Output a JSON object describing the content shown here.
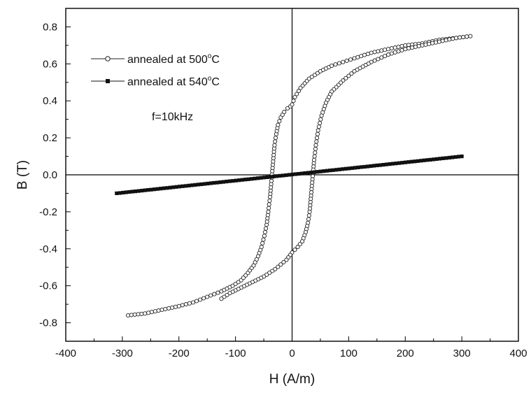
{
  "chart_data": {
    "type": "scatter",
    "title": "",
    "xlabel": "H (A/m)",
    "ylabel": "B (T)",
    "xlim": [
      -400,
      400
    ],
    "ylim": [
      -0.9,
      0.9
    ],
    "x_ticks": [
      -400,
      -300,
      -200,
      -100,
      0,
      100,
      200,
      300,
      400
    ],
    "x_tick_labels": [
      "-400",
      "-300",
      "-200",
      "-100",
      "0",
      "100",
      "200",
      "300",
      "400"
    ],
    "y_ticks": [
      -0.8,
      -0.6,
      -0.4,
      -0.2,
      0.0,
      0.2,
      0.4,
      0.6,
      0.8
    ],
    "y_tick_labels": [
      "-0.8",
      "-0.6",
      "-0.4",
      "-0.2",
      "0.0",
      "0.2",
      "0.4",
      "0.6",
      "0.8"
    ],
    "grid": false,
    "zero_lines": true,
    "legend_position": "top-left",
    "annotation": "f=10kHz",
    "series": [
      {
        "name": "annealed at 500°C",
        "legend_main": "annealed at 500",
        "legend_sup": "o",
        "legend_tail": "C",
        "marker": "open-circle",
        "color": "#222222",
        "x": [
          -290,
          -260,
          -230,
          -200,
          -175,
          -150,
          -125,
          -105,
          -90,
          -78,
          -68,
          -60,
          -54,
          -49,
          -45,
          -42,
          -39,
          -37,
          -35,
          -33,
          -31,
          -28,
          -25,
          -20,
          -14,
          -8,
          -3,
          0,
          5,
          15,
          30,
          50,
          70,
          90,
          110,
          140,
          170,
          200,
          230,
          260,
          290,
          315,
          290,
          260,
          230,
          200,
          170,
          140,
          110,
          90,
          70,
          60,
          52,
          46,
          42,
          39,
          37,
          35,
          33,
          31,
          28,
          24,
          18,
          10,
          0,
          -10,
          -30,
          -50,
          -70,
          -90,
          -110,
          -125
        ],
        "y": [
          -0.76,
          -0.75,
          -0.73,
          -0.71,
          -0.69,
          -0.66,
          -0.63,
          -0.6,
          -0.57,
          -0.53,
          -0.49,
          -0.44,
          -0.39,
          -0.33,
          -0.27,
          -0.2,
          -0.12,
          -0.05,
          0.02,
          0.09,
          0.16,
          0.22,
          0.27,
          0.31,
          0.34,
          0.36,
          0.37,
          0.38,
          0.42,
          0.47,
          0.52,
          0.56,
          0.59,
          0.61,
          0.63,
          0.66,
          0.68,
          0.7,
          0.71,
          0.73,
          0.74,
          0.75,
          0.74,
          0.72,
          0.7,
          0.68,
          0.65,
          0.61,
          0.56,
          0.51,
          0.45,
          0.39,
          0.32,
          0.24,
          0.16,
          0.08,
          0.01,
          -0.06,
          -0.13,
          -0.2,
          -0.26,
          -0.31,
          -0.36,
          -0.39,
          -0.42,
          -0.46,
          -0.51,
          -0.55,
          -0.58,
          -0.61,
          -0.64,
          -0.67
        ]
      },
      {
        "name": "annealed at 540°C",
        "legend_main": "annealed at 540",
        "legend_sup": "o",
        "legend_tail": "C",
        "marker": "filled-square",
        "color": "#111111",
        "x": [
          -310,
          300
        ],
        "y": [
          -0.1,
          0.1
        ]
      }
    ]
  }
}
